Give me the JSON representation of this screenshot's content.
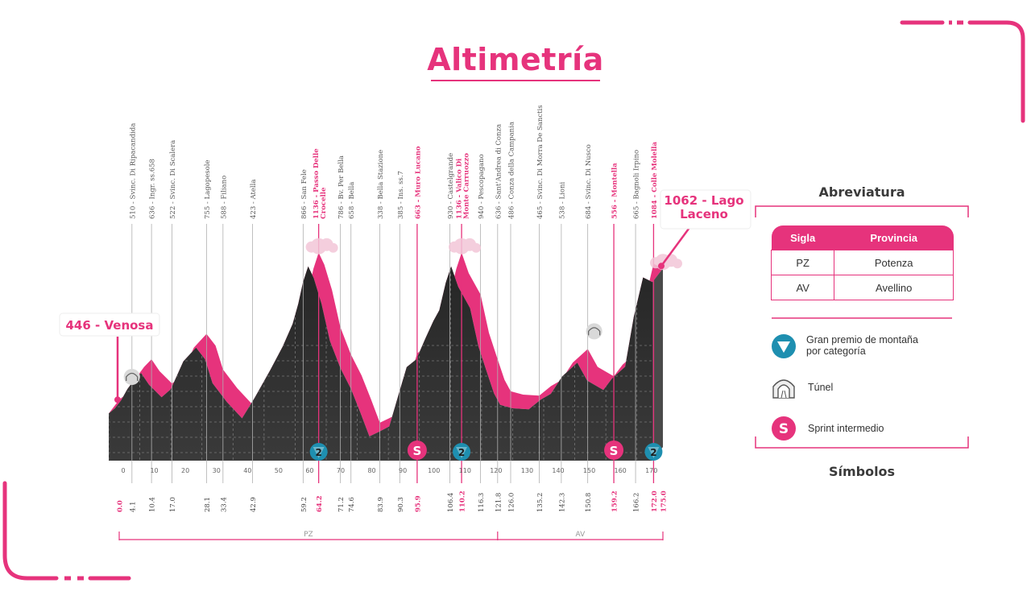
{
  "title": "Altimetría",
  "chart_data": {
    "type": "area",
    "xlim": [
      0,
      175
    ],
    "ylim": [
      300,
      1150
    ],
    "x_ticks": [
      0,
      10,
      20,
      30,
      40,
      50,
      60,
      70,
      80,
      90,
      100,
      110,
      120,
      130,
      140,
      150,
      160,
      170
    ],
    "profile": [
      {
        "x": 0,
        "y": 446
      },
      {
        "x": 2,
        "y": 470
      },
      {
        "x": 4.1,
        "y": 510
      },
      {
        "x": 6,
        "y": 560
      },
      {
        "x": 8,
        "y": 600
      },
      {
        "x": 10.4,
        "y": 636
      },
      {
        "x": 13,
        "y": 580
      },
      {
        "x": 17,
        "y": 522
      },
      {
        "x": 20,
        "y": 560
      },
      {
        "x": 24,
        "y": 690
      },
      {
        "x": 28.1,
        "y": 755
      },
      {
        "x": 31,
        "y": 700
      },
      {
        "x": 33.4,
        "y": 588
      },
      {
        "x": 38,
        "y": 500
      },
      {
        "x": 42.9,
        "y": 423
      },
      {
        "x": 47,
        "y": 520
      },
      {
        "x": 52,
        "y": 650
      },
      {
        "x": 56,
        "y": 760
      },
      {
        "x": 59.2,
        "y": 866
      },
      {
        "x": 61,
        "y": 960
      },
      {
        "x": 62.5,
        "y": 1060
      },
      {
        "x": 64.2,
        "y": 1136
      },
      {
        "x": 66,
        "y": 1080
      },
      {
        "x": 68.5,
        "y": 960
      },
      {
        "x": 71.2,
        "y": 786
      },
      {
        "x": 74.6,
        "y": 658
      },
      {
        "x": 78,
        "y": 560
      },
      {
        "x": 81,
        "y": 450
      },
      {
        "x": 83.9,
        "y": 338
      },
      {
        "x": 87,
        "y": 360
      },
      {
        "x": 90.3,
        "y": 385
      },
      {
        "x": 93,
        "y": 520
      },
      {
        "x": 95.9,
        "y": 663
      },
      {
        "x": 99,
        "y": 700
      },
      {
        "x": 102,
        "y": 800
      },
      {
        "x": 104.5,
        "y": 880
      },
      {
        "x": 106.4,
        "y": 930
      },
      {
        "x": 108.5,
        "y": 1060
      },
      {
        "x": 110.2,
        "y": 1136
      },
      {
        "x": 112.5,
        "y": 1040
      },
      {
        "x": 116.3,
        "y": 940
      },
      {
        "x": 119,
        "y": 760
      },
      {
        "x": 121.8,
        "y": 636
      },
      {
        "x": 124,
        "y": 540
      },
      {
        "x": 126,
        "y": 486
      },
      {
        "x": 130,
        "y": 470
      },
      {
        "x": 135.2,
        "y": 465
      },
      {
        "x": 139,
        "y": 510
      },
      {
        "x": 142.3,
        "y": 538
      },
      {
        "x": 146,
        "y": 620
      },
      {
        "x": 150.8,
        "y": 684
      },
      {
        "x": 154,
        "y": 600
      },
      {
        "x": 159.2,
        "y": 556
      },
      {
        "x": 162,
        "y": 610
      },
      {
        "x": 166.2,
        "y": 665
      },
      {
        "x": 169,
        "y": 900
      },
      {
        "x": 172,
        "y": 1084
      },
      {
        "x": 175,
        "y": 1062
      }
    ],
    "waypoints": [
      {
        "km": "0.0",
        "label": "",
        "highlight": true
      },
      {
        "km": "4.1",
        "label": "510 - Svinc. Di Ripacandida",
        "highlight": false
      },
      {
        "km": "10.4",
        "label": "636 - Ingr. ss.658",
        "highlight": false
      },
      {
        "km": "17.0",
        "label": "522 - Svinc. Di Scalera",
        "highlight": false
      },
      {
        "km": "28.1",
        "label": "755 - Lagopesole",
        "highlight": false
      },
      {
        "km": "33.4",
        "label": "588 - Filiano",
        "highlight": false
      },
      {
        "km": "42.9",
        "label": "423 - Atella",
        "highlight": false
      },
      {
        "km": "59.2",
        "label": "866 - San Fele",
        "highlight": false
      },
      {
        "km": "64.2",
        "label": "1136 - Passo Delle Crocelle",
        "highlight": true
      },
      {
        "km": "71.2",
        "label": "786 - Bv. Per Bella",
        "highlight": false
      },
      {
        "km": "74.6",
        "label": "658 - Bella",
        "highlight": false
      },
      {
        "km": "83.9",
        "label": "338 - Bella Stazione",
        "highlight": false
      },
      {
        "km": "90.3",
        "label": "385 - Ins. ss.7",
        "highlight": false
      },
      {
        "km": "95.9",
        "label": "663 - Muro Lucano",
        "highlight": true
      },
      {
        "km": "106.4",
        "label": "930 - Castelgrande",
        "highlight": false
      },
      {
        "km": "110.2",
        "label": "1136 - Valico Di Monte Carruozzo",
        "highlight": true
      },
      {
        "km": "116.3",
        "label": "940 - Pescopagano",
        "highlight": false
      },
      {
        "km": "121.8",
        "label": "636 - Sant'Andrea di Conza",
        "highlight": false
      },
      {
        "km": "126.0",
        "label": "486 - Conza della Campania",
        "highlight": false
      },
      {
        "km": "135.2",
        "label": "465 - Svinc. Di Morra De Sanctis",
        "highlight": false
      },
      {
        "km": "142.3",
        "label": "538 - Lioni",
        "highlight": false
      },
      {
        "km": "150.8",
        "label": "684 - Svinc. Di Nusco",
        "highlight": false
      },
      {
        "km": "159.2",
        "label": "556 - Montella",
        "highlight": true
      },
      {
        "km": "166.2",
        "label": "665 - Bagnoli Irpino",
        "highlight": false
      },
      {
        "km": "172.0",
        "label": "1084 - Colle Molella",
        "highlight": true
      },
      {
        "km": "175.0",
        "label": "",
        "highlight": true
      }
    ],
    "start_label": "446 - Venosa",
    "finish_label_lines": [
      "1062 - Lago",
      "Laceno"
    ],
    "markers": [
      {
        "type": "gpm",
        "km": 64.2,
        "text": "2"
      },
      {
        "type": "sprint",
        "km": 95.9,
        "text": "S"
      },
      {
        "type": "gpm",
        "km": 110.2,
        "text": "2"
      },
      {
        "type": "sprint",
        "km": 159.2,
        "text": "S"
      },
      {
        "type": "gpm",
        "km": 172.0,
        "text": "2"
      },
      {
        "type": "tunnel",
        "km": 2
      },
      {
        "type": "tunnel",
        "km": 150.8
      }
    ],
    "provinces": [
      {
        "label": "PZ",
        "from": 0,
        "to": 121.8
      },
      {
        "label": "AV",
        "from": 121.8,
        "to": 175
      }
    ]
  },
  "legend": {
    "abbr_title": "Abreviatura",
    "symbols_title": "Símbolos",
    "headers": [
      "Sigla",
      "Provincia"
    ],
    "rows": [
      {
        "code": "PZ",
        "name": "Potenza"
      },
      {
        "code": "AV",
        "name": "Avellino"
      }
    ],
    "symbols": [
      {
        "icon": "gpm-triangle-icon",
        "lines": [
          "Gran premio de montaña",
          "por categoría"
        ]
      },
      {
        "icon": "tunnel-icon",
        "lines": [
          "Túnel"
        ]
      },
      {
        "icon": "sprint-icon",
        "lines": [
          "Sprint intermedio"
        ]
      }
    ]
  },
  "colors": {
    "accent": "#e6337c",
    "teal": "#1e8fb0",
    "profile": "#333333",
    "text": "#3a3a3a"
  }
}
